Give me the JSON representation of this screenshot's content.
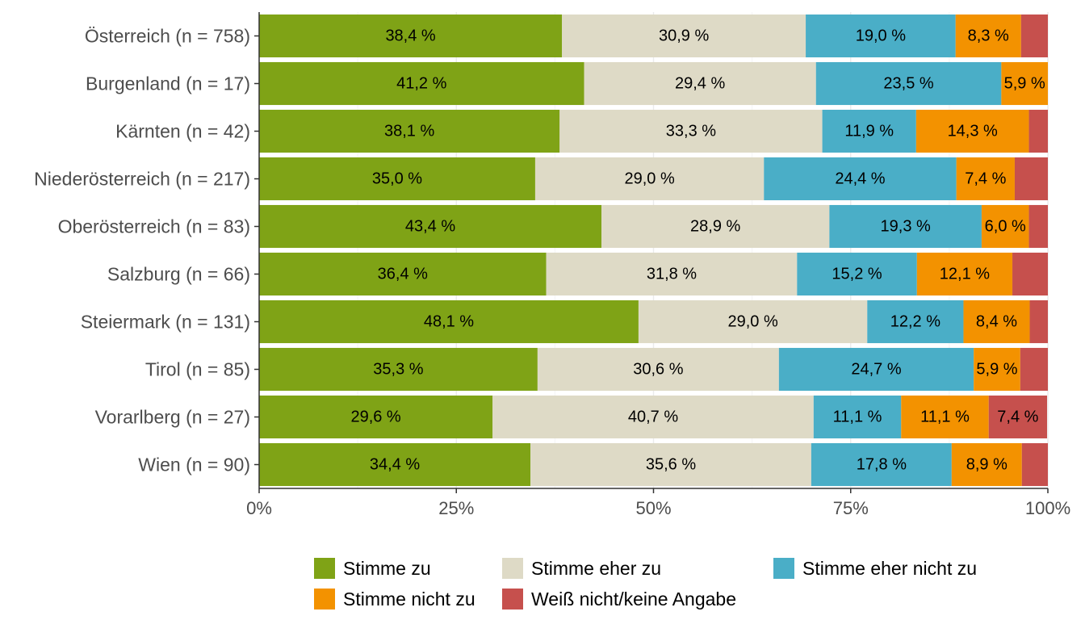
{
  "chart_data": {
    "type": "bar",
    "orientation": "horizontal",
    "stacked": true,
    "categories": [
      "Österreich (n = 758)",
      "Burgenland (n = 17)",
      "Kärnten (n = 42)",
      "Niederösterreich (n = 217)",
      "Oberösterreich (n = 83)",
      "Salzburg (n = 66)",
      "Steiermark (n = 131)",
      "Tirol (n = 85)",
      "Vorarlberg (n = 27)",
      "Wien (n = 90)"
    ],
    "series": [
      {
        "name": "Stimme zu",
        "color": "#7fa316",
        "values": [
          38.4,
          41.2,
          38.1,
          35.0,
          43.4,
          36.4,
          48.1,
          35.3,
          29.6,
          34.4
        ],
        "labels": [
          "38,4 %",
          "41,2 %",
          "38,1 %",
          "35,0 %",
          "43,4 %",
          "36,4 %",
          "48,1 %",
          "35,3 %",
          "29,6 %",
          "34,4 %"
        ]
      },
      {
        "name": "Stimme eher zu",
        "color": "#dedac6",
        "values": [
          30.9,
          29.4,
          33.3,
          29.0,
          28.9,
          31.8,
          29.0,
          30.6,
          40.7,
          35.6
        ],
        "labels": [
          "30,9 %",
          "29,4 %",
          "33,3 %",
          "29,0 %",
          "28,9 %",
          "31,8 %",
          "29,0 %",
          "30,6 %",
          "40,7 %",
          "35,6 %"
        ]
      },
      {
        "name": "Stimme eher nicht zu",
        "color": "#4aaec7",
        "values": [
          19.0,
          23.5,
          11.9,
          24.4,
          19.3,
          15.2,
          12.2,
          24.7,
          11.1,
          17.8
        ],
        "labels": [
          "19,0 %",
          "23,5 %",
          "11,9 %",
          "24,4 %",
          "19,3 %",
          "15,2 %",
          "12,2 %",
          "24,7 %",
          "11,1 %",
          "17,8 %"
        ]
      },
      {
        "name": "Stimme nicht zu",
        "color": "#f39200",
        "values": [
          8.3,
          5.9,
          14.3,
          7.4,
          6.0,
          12.1,
          8.4,
          5.9,
          11.1,
          8.9
        ],
        "labels": [
          "8,3 %",
          "5,9 %",
          "14,3 %",
          "7,4 %",
          "6,0 %",
          "12,1 %",
          "8,4 %",
          "5,9 %",
          "11,1 %",
          "8,9 %"
        ]
      },
      {
        "name": "Weiß nicht/keine Angabe",
        "color": "#c6504d",
        "values": [
          3.4,
          0.0,
          2.4,
          4.2,
          2.4,
          4.5,
          2.3,
          3.5,
          7.4,
          3.3
        ],
        "labels": [
          "",
          "",
          "",
          "",
          "",
          "",
          "",
          "",
          "7,4 %",
          ""
        ]
      }
    ],
    "xlim": [
      0,
      100
    ],
    "xticks": [
      0,
      25,
      50,
      75,
      100
    ],
    "xtick_labels": [
      "0%",
      "25%",
      "50%",
      "75%",
      "100%"
    ],
    "title": "",
    "xlabel": "",
    "ylabel": "",
    "grid": true,
    "legend_position": "bottom"
  }
}
